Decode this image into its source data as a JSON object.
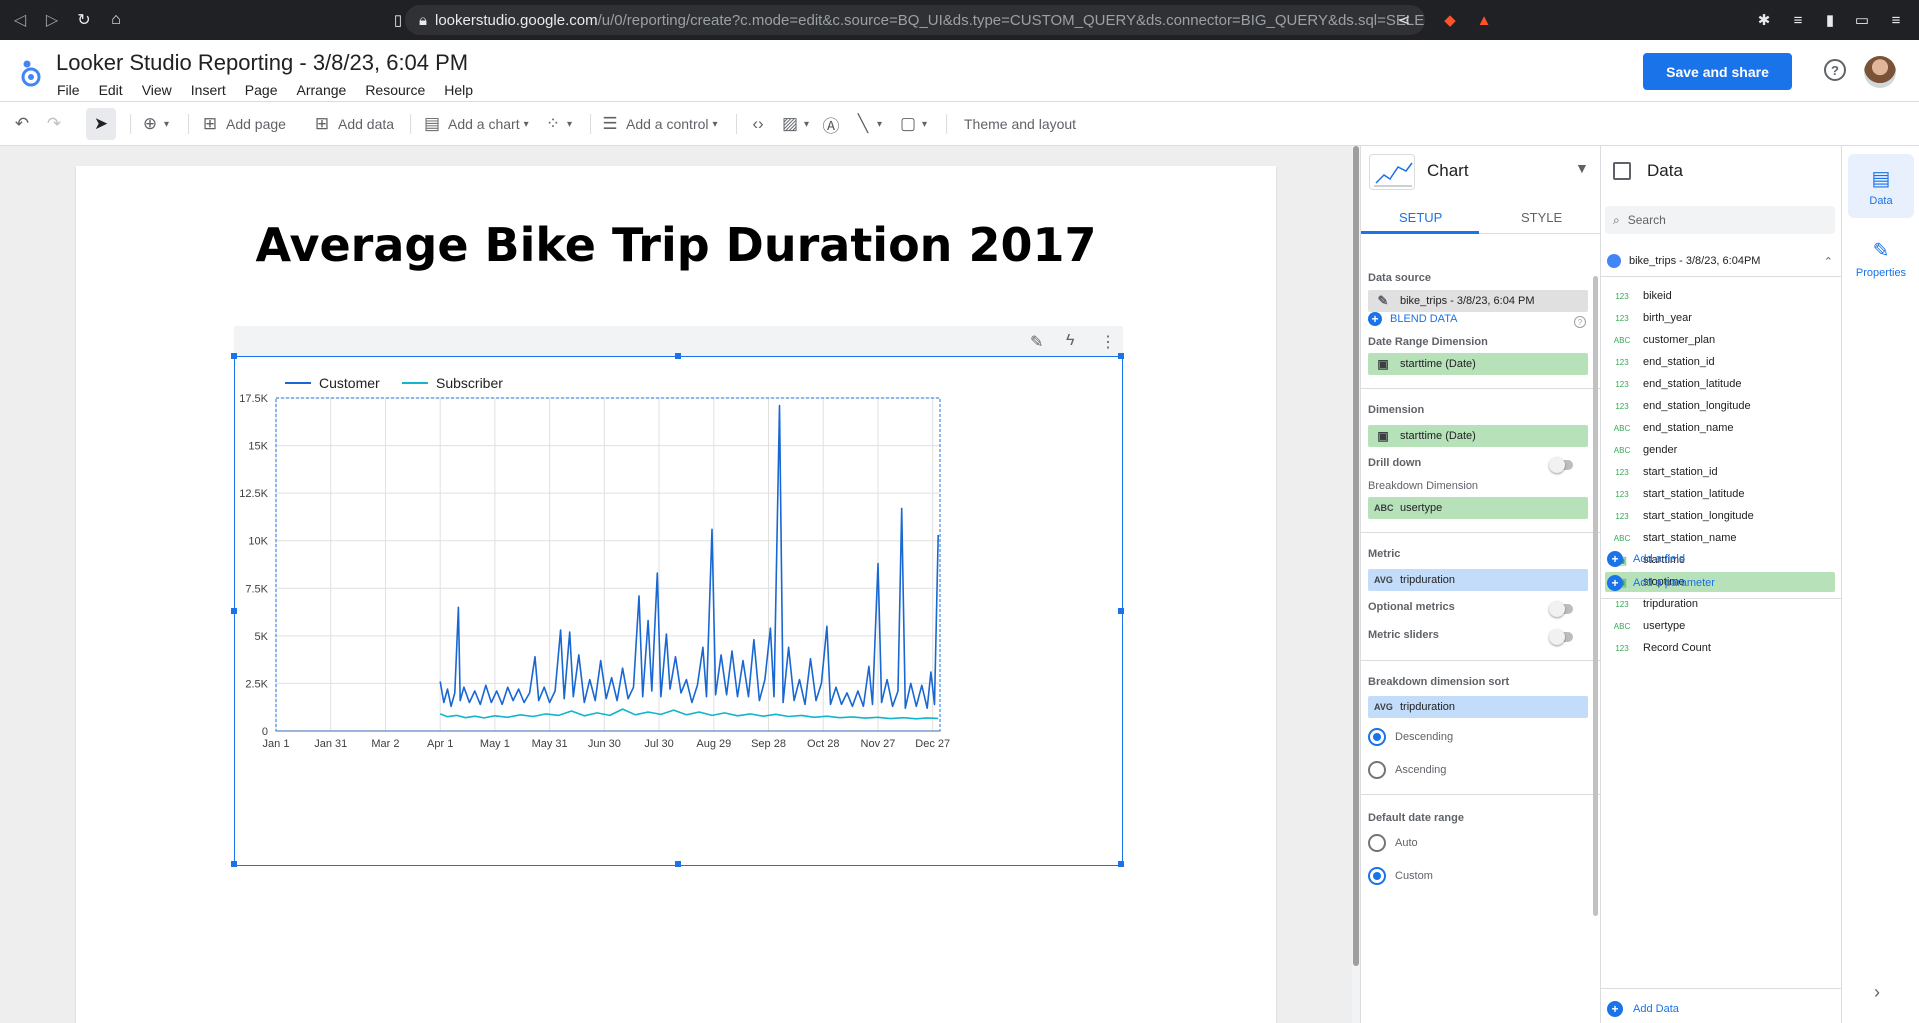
{
  "browser": {
    "url_host": "lookerstudio.google.com",
    "url_path": "/u/0/reporting/create?c.mode=edit&c.source=BQ_UI&ds.type=CUSTOM_QUERY&ds.connector=BIG_QUERY&ds.sql=SELECT..."
  },
  "app": {
    "title": "Looker Studio Reporting - 3/8/23, 6:04 PM",
    "menus": [
      "File",
      "Edit",
      "View",
      "Insert",
      "Page",
      "Arrange",
      "Resource",
      "Help"
    ],
    "save_label": "Save and share",
    "help_glyph": "?"
  },
  "toolbar": {
    "add_page": "Add page",
    "add_data": "Add data",
    "add_chart": "Add a chart",
    "add_control": "Add a control",
    "theme": "Theme and layout"
  },
  "report": {
    "title": "Average Bike Trip Duration 2017"
  },
  "chart_data": {
    "type": "line",
    "title": "Average Bike Trip Duration 2017",
    "xlabel": "",
    "ylabel": "",
    "ylim": [
      0,
      17500
    ],
    "xlim": [
      "2017-01-01",
      "2017-12-31"
    ],
    "y_ticks": [
      "0",
      "2.5K",
      "5K",
      "7.5K",
      "10K",
      "12.5K",
      "15K",
      "17.5K"
    ],
    "x_ticks": [
      "Jan 1",
      "Jan 31",
      "Mar 2",
      "Apr 1",
      "May 1",
      "May 31",
      "Jun 30",
      "Jul 30",
      "Aug 29",
      "Sep 28",
      "Oct 28",
      "Nov 27",
      "Dec 27"
    ],
    "legend_position": "top-left",
    "grid": true,
    "series": [
      {
        "name": "Customer",
        "color": "#1967d2",
        "points": [
          [
            "2017-04-01",
            2600
          ],
          [
            "2017-04-03",
            1500
          ],
          [
            "2017-04-05",
            2200
          ],
          [
            "2017-04-07",
            1300
          ],
          [
            "2017-04-09",
            2000
          ],
          [
            "2017-04-11",
            6500
          ],
          [
            "2017-04-12",
            1600
          ],
          [
            "2017-04-14",
            2300
          ],
          [
            "2017-04-17",
            1500
          ],
          [
            "2017-04-20",
            2100
          ],
          [
            "2017-04-23",
            1400
          ],
          [
            "2017-04-26",
            2400
          ],
          [
            "2017-04-29",
            1500
          ],
          [
            "2017-05-02",
            2100
          ],
          [
            "2017-05-05",
            1400
          ],
          [
            "2017-05-08",
            2300
          ],
          [
            "2017-05-11",
            1600
          ],
          [
            "2017-05-14",
            2200
          ],
          [
            "2017-05-17",
            1500
          ],
          [
            "2017-05-20",
            2000
          ],
          [
            "2017-05-23",
            3900
          ],
          [
            "2017-05-25",
            1600
          ],
          [
            "2017-05-28",
            2300
          ],
          [
            "2017-05-31",
            1500
          ],
          [
            "2017-06-03",
            2100
          ],
          [
            "2017-06-06",
            5300
          ],
          [
            "2017-06-08",
            1700
          ],
          [
            "2017-06-11",
            5200
          ],
          [
            "2017-06-13",
            1800
          ],
          [
            "2017-06-16",
            4000
          ],
          [
            "2017-06-19",
            1500
          ],
          [
            "2017-06-22",
            2700
          ],
          [
            "2017-06-25",
            1600
          ],
          [
            "2017-06-28",
            3700
          ],
          [
            "2017-07-01",
            1700
          ],
          [
            "2017-07-04",
            2800
          ],
          [
            "2017-07-07",
            1600
          ],
          [
            "2017-07-10",
            3300
          ],
          [
            "2017-07-13",
            1700
          ],
          [
            "2017-07-16",
            2300
          ],
          [
            "2017-07-19",
            7100
          ],
          [
            "2017-07-21",
            1800
          ],
          [
            "2017-07-24",
            5800
          ],
          [
            "2017-07-26",
            2100
          ],
          [
            "2017-07-29",
            8300
          ],
          [
            "2017-07-31",
            1800
          ],
          [
            "2017-08-03",
            5100
          ],
          [
            "2017-08-05",
            2200
          ],
          [
            "2017-08-08",
            3900
          ],
          [
            "2017-08-11",
            2000
          ],
          [
            "2017-08-14",
            2700
          ],
          [
            "2017-08-17",
            1500
          ],
          [
            "2017-08-20",
            2400
          ],
          [
            "2017-08-23",
            4400
          ],
          [
            "2017-08-25",
            1800
          ],
          [
            "2017-08-28",
            10600
          ],
          [
            "2017-08-30",
            1900
          ],
          [
            "2017-09-02",
            4000
          ],
          [
            "2017-09-05",
            1900
          ],
          [
            "2017-09-08",
            4200
          ],
          [
            "2017-09-11",
            1800
          ],
          [
            "2017-09-14",
            3700
          ],
          [
            "2017-09-17",
            1800
          ],
          [
            "2017-09-20",
            4800
          ],
          [
            "2017-09-23",
            1600
          ],
          [
            "2017-09-26",
            2700
          ],
          [
            "2017-09-29",
            5400
          ],
          [
            "2017-10-01",
            1800
          ],
          [
            "2017-10-04",
            17100
          ],
          [
            "2017-10-06",
            1500
          ],
          [
            "2017-10-09",
            4400
          ],
          [
            "2017-10-12",
            1600
          ],
          [
            "2017-10-15",
            2700
          ],
          [
            "2017-10-18",
            1400
          ],
          [
            "2017-10-21",
            3800
          ],
          [
            "2017-10-24",
            1600
          ],
          [
            "2017-10-27",
            2500
          ],
          [
            "2017-10-30",
            5500
          ],
          [
            "2017-11-01",
            1400
          ],
          [
            "2017-11-04",
            2300
          ],
          [
            "2017-11-07",
            1400
          ],
          [
            "2017-11-10",
            2000
          ],
          [
            "2017-11-13",
            1300
          ],
          [
            "2017-11-16",
            2100
          ],
          [
            "2017-11-19",
            1300
          ],
          [
            "2017-11-22",
            3400
          ],
          [
            "2017-11-24",
            1400
          ],
          [
            "2017-11-27",
            8800
          ],
          [
            "2017-11-29",
            1500
          ],
          [
            "2017-12-02",
            2700
          ],
          [
            "2017-12-05",
            1300
          ],
          [
            "2017-12-08",
            2100
          ],
          [
            "2017-12-10",
            11700
          ],
          [
            "2017-12-12",
            1200
          ],
          [
            "2017-12-15",
            2500
          ],
          [
            "2017-12-18",
            1300
          ],
          [
            "2017-12-21",
            2400
          ],
          [
            "2017-12-24",
            1200
          ],
          [
            "2017-12-26",
            3100
          ],
          [
            "2017-12-28",
            1400
          ],
          [
            "2017-12-30",
            10300
          ]
        ]
      },
      {
        "name": "Subscriber",
        "color": "#12b5cb",
        "points": [
          [
            "2017-04-01",
            900
          ],
          [
            "2017-04-05",
            750
          ],
          [
            "2017-04-10",
            820
          ],
          [
            "2017-04-15",
            700
          ],
          [
            "2017-04-20",
            780
          ],
          [
            "2017-04-25",
            690
          ],
          [
            "2017-05-01",
            800
          ],
          [
            "2017-05-08",
            720
          ],
          [
            "2017-05-15",
            850
          ],
          [
            "2017-05-22",
            760
          ],
          [
            "2017-05-29",
            900
          ],
          [
            "2017-06-05",
            820
          ],
          [
            "2017-06-12",
            1050
          ],
          [
            "2017-06-19",
            800
          ],
          [
            "2017-06-26",
            950
          ],
          [
            "2017-07-03",
            820
          ],
          [
            "2017-07-10",
            1150
          ],
          [
            "2017-07-17",
            850
          ],
          [
            "2017-07-24",
            1000
          ],
          [
            "2017-07-31",
            870
          ],
          [
            "2017-08-07",
            1100
          ],
          [
            "2017-08-14",
            850
          ],
          [
            "2017-08-21",
            1000
          ],
          [
            "2017-08-28",
            820
          ],
          [
            "2017-09-04",
            950
          ],
          [
            "2017-09-11",
            800
          ],
          [
            "2017-09-18",
            900
          ],
          [
            "2017-09-25",
            780
          ],
          [
            "2017-10-02",
            880
          ],
          [
            "2017-10-09",
            760
          ],
          [
            "2017-10-16",
            820
          ],
          [
            "2017-10-23",
            720
          ],
          [
            "2017-10-30",
            780
          ],
          [
            "2017-11-06",
            700
          ],
          [
            "2017-11-13",
            740
          ],
          [
            "2017-11-20",
            680
          ],
          [
            "2017-11-27",
            720
          ],
          [
            "2017-12-04",
            650
          ],
          [
            "2017-12-11",
            700
          ],
          [
            "2017-12-18",
            640
          ],
          [
            "2017-12-24",
            690
          ],
          [
            "2017-12-30",
            660
          ]
        ]
      }
    ]
  },
  "chart_panel": {
    "title": "Chart",
    "tab_setup": "SETUP",
    "tab_style": "STYLE",
    "data_source_label": "Data source",
    "data_source": "bike_trips - 3/8/23, 6:04 PM",
    "blend": "BLEND DATA",
    "date_range_label": "Date Range Dimension",
    "date_range": "starttime (Date)",
    "dimension_label": "Dimension",
    "dimension": "starttime (Date)",
    "drill_label": "Drill down",
    "breakdown_label": "Breakdown Dimension",
    "breakdown_type": "ABC",
    "breakdown": "usertype",
    "metric_label": "Metric",
    "metric_agg": "AVG",
    "metric": "tripduration",
    "optional_metrics": "Optional metrics",
    "metric_sliders": "Metric sliders",
    "sort_label": "Breakdown dimension sort",
    "sort_agg": "AVG",
    "sort_field": "tripduration",
    "descending": "Descending",
    "ascending": "Ascending",
    "date_range_default": "Default date range",
    "auto": "Auto",
    "custom": "Custom"
  },
  "data_panel": {
    "title": "Data",
    "search_placeholder": "Search",
    "source": "bike_trips - 3/8/23, 6:04PM",
    "fields": [
      {
        "type": "123",
        "name": "bikeid"
      },
      {
        "type": "123",
        "name": "birth_year"
      },
      {
        "type": "ABC",
        "name": "customer_plan"
      },
      {
        "type": "123",
        "name": "end_station_id"
      },
      {
        "type": "123",
        "name": "end_station_latitude"
      },
      {
        "type": "123",
        "name": "end_station_longitude"
      },
      {
        "type": "ABC",
        "name": "end_station_name"
      },
      {
        "type": "ABC",
        "name": "gender"
      },
      {
        "type": "123",
        "name": "start_station_id"
      },
      {
        "type": "123",
        "name": "start_station_latitude"
      },
      {
        "type": "123",
        "name": "start_station_longitude"
      },
      {
        "type": "ABC",
        "name": "start_station_name"
      },
      {
        "type": "cal",
        "name": "starttime"
      },
      {
        "type": "cal",
        "name": "stoptime"
      },
      {
        "type": "123",
        "name": "tripduration"
      },
      {
        "type": "ABC",
        "name": "usertype"
      },
      {
        "type": "123",
        "name": "Record Count"
      }
    ],
    "add_field": "Add a field",
    "add_parameter": "Add a parameter",
    "add_data": "Add Data"
  },
  "rail": {
    "data": "Data",
    "properties": "Properties"
  }
}
